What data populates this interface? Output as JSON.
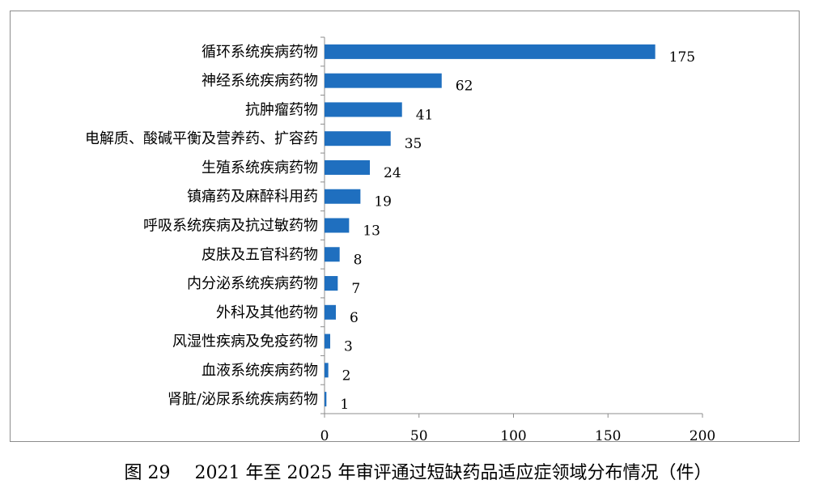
{
  "chart_data": {
    "type": "bar",
    "orientation": "horizontal",
    "categories": [
      "循环系统疾病药物",
      "神经系统疾病药物",
      "抗肿瘤药物",
      "电解质、酸碱平衡及营养药、扩容药",
      "生殖系统疾病药物",
      "镇痛药及麻醉科用药",
      "呼吸系统疾病及抗过敏药物",
      "皮肤及五官科药物",
      "内分泌系统疾病药物",
      "外科及其他药物",
      "风湿性疾病及免疫药物",
      "血液系统疾病药物",
      "肾脏/泌尿系统疾病药物"
    ],
    "values": [
      175,
      62,
      41,
      35,
      24,
      19,
      13,
      8,
      7,
      6,
      3,
      2,
      1
    ],
    "data_labels": [
      "175",
      "62",
      "41",
      "35",
      "24",
      "19",
      "13",
      "8",
      "7",
      "6",
      "3",
      "2",
      "1"
    ],
    "xlim": [
      0,
      200
    ],
    "x_ticks": [
      0,
      50,
      100,
      150,
      200
    ],
    "x_tick_labels": [
      "0",
      "50",
      "100",
      "150",
      "200"
    ],
    "bar_color": "#1f6fbf",
    "grid": false,
    "legend": "none"
  },
  "caption": {
    "figure_number": "图 29",
    "title": "2021 年至 2025 年审评通过短缺药品适应症领域分布情况（件）"
  }
}
